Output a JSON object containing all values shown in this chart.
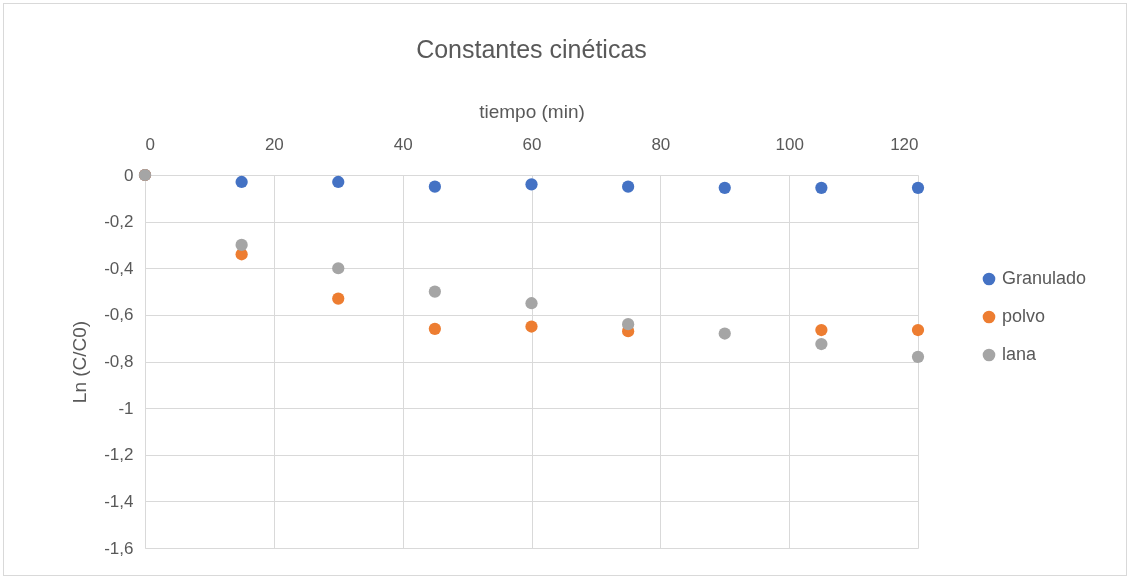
{
  "chart_data": {
    "type": "scatter",
    "title": "Constantes cinéticas",
    "xlabel": "tiempo (min)",
    "ylabel": "Ln (C/C0)",
    "x": [
      0,
      15,
      30,
      45,
      60,
      75,
      90,
      105,
      120
    ],
    "series": [
      {
        "name": "Granulado",
        "color": "#4472c4",
        "values": [
          0,
          -0.03,
          -0.03,
          -0.05,
          -0.04,
          -0.05,
          -0.055,
          -0.055,
          -0.055
        ]
      },
      {
        "name": "polvo",
        "color": "#ed7d31",
        "values": [
          0,
          -0.34,
          -0.53,
          -0.66,
          -0.65,
          -0.67,
          null,
          -0.665,
          -0.665
        ]
      },
      {
        "name": "lana",
        "color": "#a5a5a5",
        "values": [
          0,
          -0.3,
          -0.4,
          -0.5,
          -0.55,
          -0.64,
          -0.68,
          -0.725,
          -0.78
        ]
      }
    ],
    "xlim": [
      0,
      120
    ],
    "xticks": [
      0,
      20,
      40,
      60,
      80,
      100,
      120
    ],
    "ylim": [
      -1.6,
      0
    ],
    "yticks": [
      0,
      {
        "value": -0.2,
        "label": "-0,2"
      },
      {
        "value": -0.4,
        "label": "-0,4"
      },
      {
        "value": -0.6,
        "label": "-0,6"
      },
      {
        "value": -0.8,
        "label": "-0,8"
      },
      -1,
      {
        "value": -1.2,
        "label": "-1,2"
      },
      {
        "value": -1.4,
        "label": "-1,4"
      },
      {
        "value": -1.6,
        "label": "-1,6"
      }
    ],
    "grid": true,
    "legend": "right",
    "marker": "circle"
  }
}
